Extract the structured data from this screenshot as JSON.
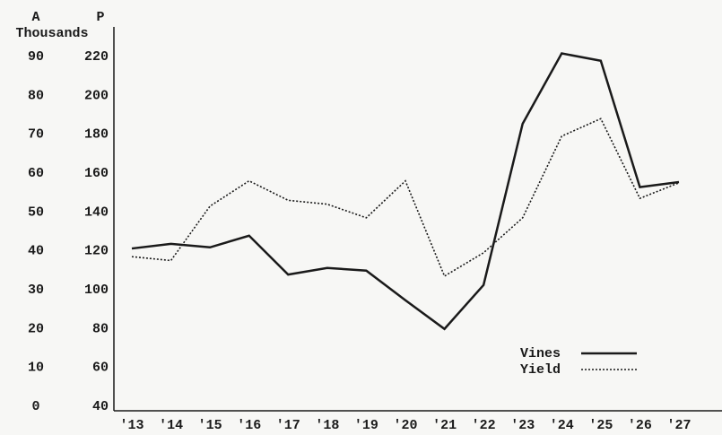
{
  "chart_data": {
    "type": "line",
    "y_label": "A",
    "y2_label": "P",
    "unit_label": "Thousands",
    "categories": [
      "'13",
      "'14",
      "'15",
      "'16",
      "'17",
      "'18",
      "'19",
      "'20",
      "'21",
      "'22",
      "'23",
      "'24",
      "'25",
      "'26",
      "'27"
    ],
    "series": [
      {
        "name": "Vines",
        "color": "#1a1a1a",
        "dash": "solid",
        "axis": "y",
        "values": [
          40.6,
          41.8,
          40.9,
          43.9,
          33.9,
          35.6,
          34.9,
          27.3,
          19.9,
          31.2,
          72.7,
          90.8,
          88.9,
          56.4,
          57.7
        ]
      },
      {
        "name": "Yield",
        "color": "#1a1a1a",
        "dash": "dotted",
        "axis": "y2",
        "values": [
          117,
          115,
          143,
          156,
          146,
          144,
          137,
          156,
          107,
          119,
          137,
          179,
          188,
          147,
          155
        ]
      }
    ],
    "ylim": [
      0,
      90
    ],
    "yticks": [
      0,
      10,
      20,
      30,
      40,
      50,
      60,
      70,
      80,
      90
    ],
    "y2lim": [
      40,
      220
    ],
    "y2ticks": [
      40,
      60,
      80,
      100,
      120,
      140,
      160,
      180,
      200,
      220
    ],
    "legend": "lower right"
  }
}
